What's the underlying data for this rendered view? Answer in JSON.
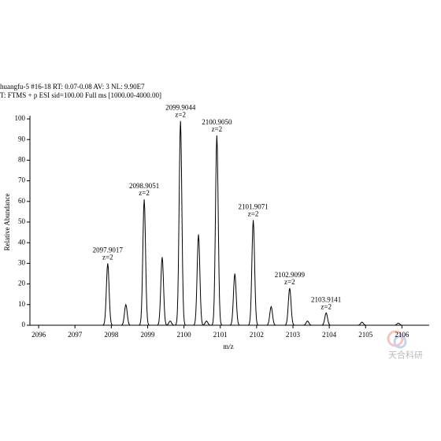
{
  "chart_data": {
    "type": "spectrum",
    "header": [
      "huangfu-5 #16-18  RT: 0.07-0.08  AV: 3  NL: 9.90E7",
      "T: FTMS + p ESI sid=100.00  Full ms [1000.00-4000.00]"
    ],
    "xlabel": "m/z",
    "ylabel": "Relative Abundance",
    "x": [
      2097.9017,
      2098.4,
      2098.9051,
      2099.4,
      2099.62,
      2099.9044,
      2100.4,
      2100.62,
      2100.905,
      2101.4,
      2101.9071,
      2102.4,
      2102.9099,
      2103.4,
      2103.9141,
      2104.9,
      2105.9
    ],
    "values": [
      30,
      10,
      61,
      33,
      2,
      99,
      44,
      2,
      92,
      25,
      51,
      9,
      18,
      2,
      6,
      1.5,
      1
    ],
    "mz_labels": [
      "2097.9017",
      null,
      "2098.9051",
      null,
      null,
      "2099.9044",
      null,
      null,
      "2100.9050",
      null,
      "2101.9071",
      null,
      "2102.9099",
      null,
      "2103.9141",
      null,
      null
    ],
    "charges": [
      "z=2",
      null,
      "z=2",
      null,
      null,
      "z=2",
      null,
      null,
      "z=2",
      null,
      "z=2",
      null,
      "z=2",
      null,
      "z=2",
      null,
      null
    ],
    "color": "#000000",
    "xlim": [
      2095.76,
      2106.75
    ],
    "xticks": [
      2096,
      2097,
      2098,
      2099,
      2100,
      2101,
      2102,
      2103,
      2104,
      2105,
      2106
    ],
    "ylim": [
      0,
      100
    ],
    "yticks": [
      0,
      10,
      20,
      30,
      40,
      50,
      60,
      70,
      80,
      90,
      100
    ],
    "watermark": "天合科研"
  }
}
